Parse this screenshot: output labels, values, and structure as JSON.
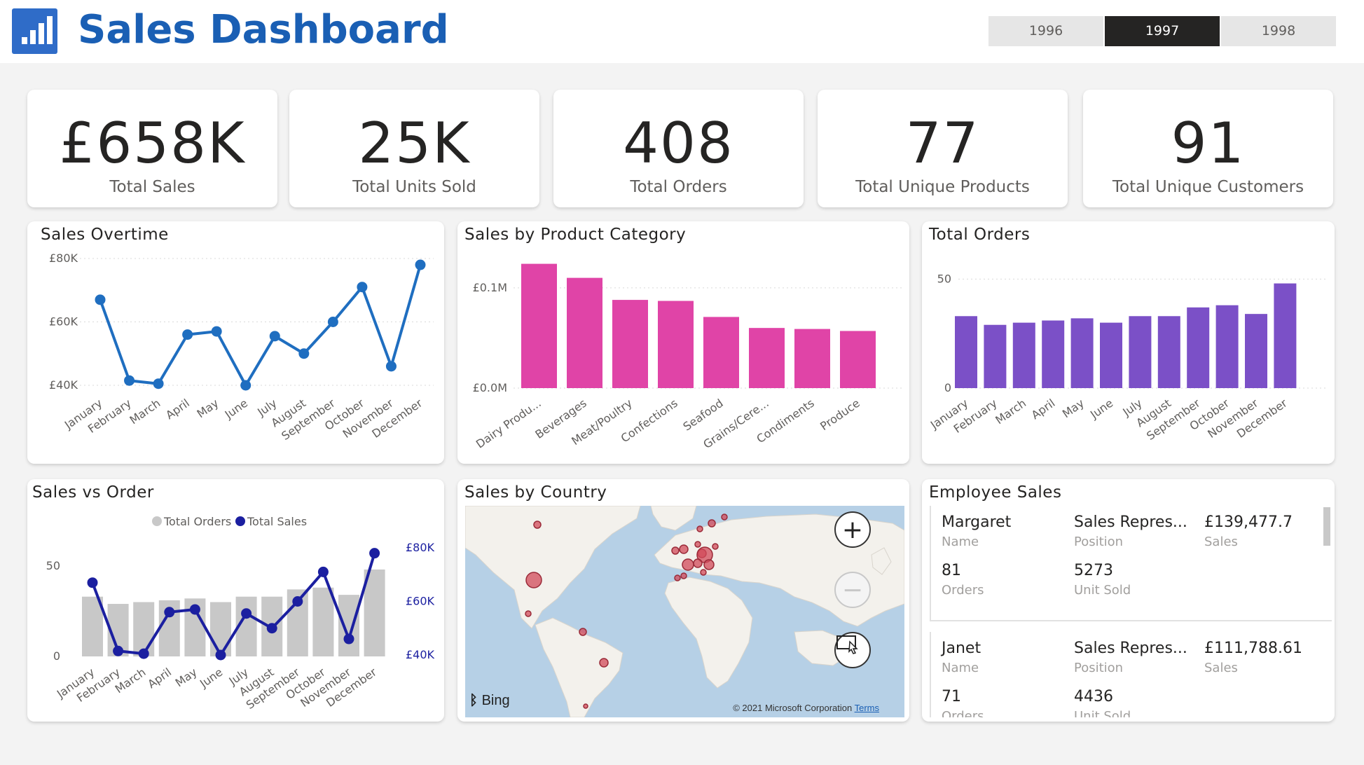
{
  "header": {
    "title": "Sales Dashboard",
    "years": [
      {
        "label": "1996",
        "selected": false
      },
      {
        "label": "1997",
        "selected": true
      },
      {
        "label": "1998",
        "selected": false
      }
    ]
  },
  "kpis": [
    {
      "value": "£658K",
      "label": "Total Sales"
    },
    {
      "value": "25K",
      "label": "Total Units Sold"
    },
    {
      "value": "408",
      "label": "Total Orders"
    },
    {
      "value": "77",
      "label": "Total Unique Products"
    },
    {
      "value": "91",
      "label": "Total Unique Customers"
    }
  ],
  "panels": {
    "sales_overtime": "Sales Overtime",
    "sales_by_category": "Sales by Product Category",
    "total_orders": "Total Orders",
    "sales_vs_order": "Sales vs Order",
    "sales_by_country": "Sales by Country",
    "employee_sales": "Employee Sales"
  },
  "colors": {
    "title_blue": "#1a5fb4",
    "line_blue": "#1f6ec0",
    "pink": "#e044a7",
    "purple": "#7b50c7",
    "navy": "#1b1fa0",
    "grey_bar": "#c8c8c8"
  },
  "chart_data": [
    {
      "id": "sales_overtime",
      "type": "line",
      "title": "Sales Overtime",
      "categories": [
        "January",
        "February",
        "March",
        "April",
        "May",
        "June",
        "July",
        "August",
        "September",
        "October",
        "November",
        "December"
      ],
      "values": [
        67000,
        41500,
        40500,
        56000,
        57000,
        40000,
        55500,
        50000,
        60000,
        71000,
        46000,
        78000
      ],
      "ylim": [
        40000,
        80000
      ],
      "yticks": [
        {
          "v": 40000,
          "label": "£40K"
        },
        {
          "v": 60000,
          "label": "£60K"
        },
        {
          "v": 80000,
          "label": "£80K"
        }
      ],
      "grid": true
    },
    {
      "id": "sales_by_category",
      "type": "bar",
      "title": "Sales by Product Category",
      "categories": [
        "Dairy Produ...",
        "Beverages",
        "Meat/Poultry",
        "Confections",
        "Seafood",
        "Grains/Cere...",
        "Condiments",
        "Produce"
      ],
      "values": [
        0.124,
        0.11,
        0.088,
        0.087,
        0.071,
        0.06,
        0.059,
        0.057
      ],
      "ylim": [
        0,
        0.13
      ],
      "yticks": [
        {
          "v": 0,
          "label": "£0.0M"
        },
        {
          "v": 0.1,
          "label": "£0.1M"
        }
      ],
      "grid": true
    },
    {
      "id": "total_orders",
      "type": "bar",
      "title": "Total Orders",
      "categories": [
        "January",
        "February",
        "March",
        "April",
        "May",
        "June",
        "July",
        "August",
        "September",
        "October",
        "November",
        "December"
      ],
      "values": [
        33,
        29,
        30,
        31,
        32,
        30,
        33,
        33,
        37,
        38,
        34,
        48
      ],
      "ylim": [
        0,
        53
      ],
      "yticks": [
        {
          "v": 0,
          "label": "0"
        },
        {
          "v": 50,
          "label": "50"
        }
      ],
      "grid": true
    },
    {
      "id": "sales_vs_order",
      "type": "bar",
      "title": "Sales vs Order",
      "legend_position": "top-center",
      "categories": [
        "January",
        "February",
        "March",
        "April",
        "May",
        "June",
        "July",
        "August",
        "September",
        "October",
        "November",
        "December"
      ],
      "series": [
        {
          "name": "Total Orders",
          "type": "bar",
          "axis": "left",
          "values": [
            33,
            29,
            30,
            31,
            32,
            30,
            33,
            33,
            37,
            38,
            34,
            48
          ]
        },
        {
          "name": "Total Sales",
          "type": "line",
          "axis": "right",
          "values": [
            67000,
            41500,
            40500,
            56000,
            57000,
            40000,
            55500,
            50000,
            60000,
            71000,
            46000,
            78000
          ]
        }
      ],
      "ylim_left": [
        0,
        53
      ],
      "yticks_left": [
        {
          "v": 0,
          "label": "0"
        },
        {
          "v": 50,
          "label": "50"
        }
      ],
      "ylim_right": [
        40000,
        80000
      ],
      "yticks_right": [
        {
          "v": 40000,
          "label": "£40K"
        },
        {
          "v": 60000,
          "label": "£60K"
        },
        {
          "v": 80000,
          "label": "£80K"
        }
      ]
    }
  ],
  "map": {
    "logo_text": "Bing",
    "copyright": "© 2021 Microsoft Corporation",
    "terms": "Terms",
    "bubble_color": "#d14a5a"
  },
  "employees": [
    {
      "name": "Margaret",
      "name_label": "Name",
      "position": "Sales Repres...",
      "position_label": "Position",
      "sales": "£139,477.7",
      "sales_label": "Sales",
      "orders": "81",
      "orders_label": "Orders",
      "units": "5273",
      "units_label": "Unit Sold"
    },
    {
      "name": "Janet",
      "name_label": "Name",
      "position": "Sales Repres...",
      "position_label": "Position",
      "sales": "£111,788.61",
      "sales_label": "Sales",
      "orders": "71",
      "orders_label": "Orders",
      "units": "4436",
      "units_label": "Unit Sold"
    }
  ]
}
